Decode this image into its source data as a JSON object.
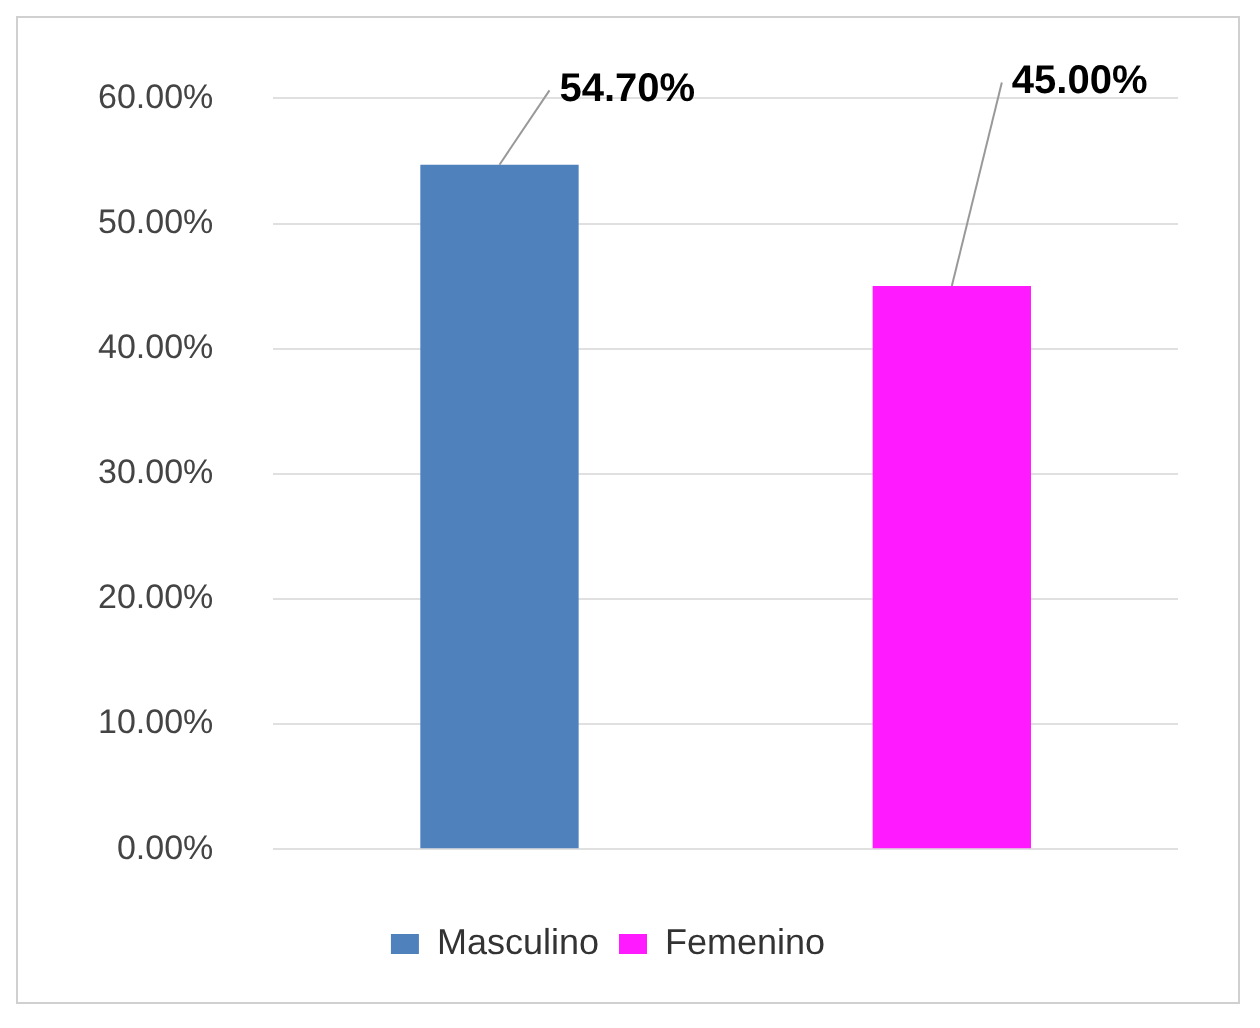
{
  "chart_data": {
    "type": "bar",
    "categories": [
      null
    ],
    "series": [
      {
        "name": "Masculino",
        "color": "#4f81bd",
        "values": [
          54.7
        ],
        "value_labels": [
          "54.70%"
        ]
      },
      {
        "name": "Femenino",
        "color": "#ff1aff",
        "values": [
          45.0
        ],
        "value_labels": [
          "45.00%"
        ]
      }
    ],
    "ylim": [
      0,
      60
    ],
    "yticks": [
      {
        "value": 0,
        "label": "0.00%"
      },
      {
        "value": 10,
        "label": "10.00%"
      },
      {
        "value": 20,
        "label": "20.00%"
      },
      {
        "value": 30,
        "label": "30.00%"
      },
      {
        "value": 40,
        "label": "40.00%"
      },
      {
        "value": 50,
        "label": "50.00%"
      },
      {
        "value": 60,
        "label": "60.00%"
      }
    ],
    "grid": "y",
    "legend": "bottom"
  }
}
